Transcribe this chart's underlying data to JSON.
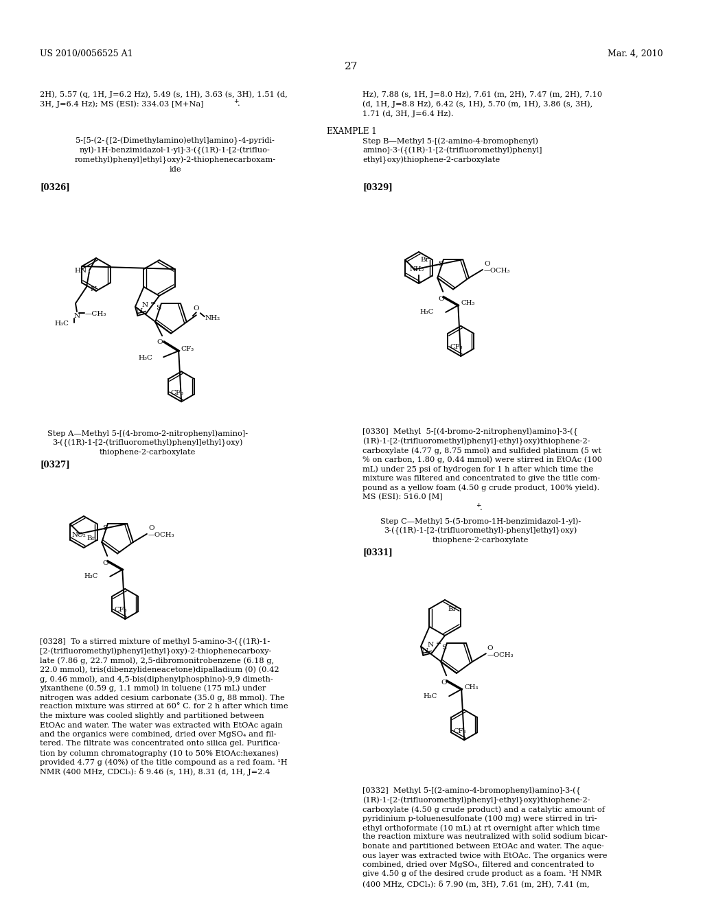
{
  "bg": "#ffffff",
  "header_left": "US 2010/0056525 A1",
  "header_right": "Mar. 4, 2010",
  "page_num": "27"
}
